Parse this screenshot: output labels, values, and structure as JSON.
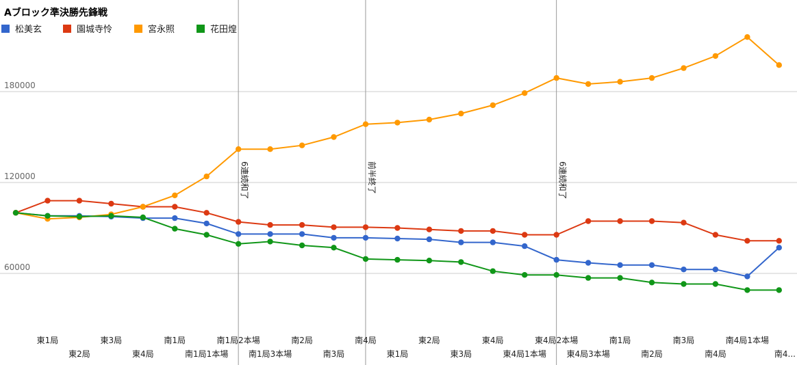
{
  "chart_data": {
    "type": "line",
    "title": "Aブロック準決勝先鋒戦",
    "xlabel": "",
    "ylabel": "",
    "legend_position": "top-left",
    "grid": true,
    "ylim": [
      30000,
      210000
    ],
    "yticks": [
      60000,
      120000,
      180000
    ],
    "categories": [
      "",
      "東1局",
      "東2局",
      "東3局",
      "東4局",
      "南1局",
      "南1局1本場",
      "南1局2本場",
      "南1局3本場",
      "南2局",
      "南3局",
      "南4局",
      "東1局",
      "東2局",
      "東3局",
      "東4局",
      "東4局1本場",
      "東4局2本場",
      "東4局3本場",
      "南1局",
      "南2局",
      "南3局",
      "南4局",
      "南4局1本場",
      "南4..."
    ],
    "series": [
      {
        "name": "松美玄",
        "color": "#3366cc",
        "values": [
          100000,
          98000,
          98000,
          97500,
          96500,
          96500,
          93000,
          86000,
          86000,
          86000,
          83500,
          83500,
          83000,
          82500,
          80500,
          80500,
          78000,
          69000,
          67000,
          65500,
          65500,
          62600,
          62600,
          58000,
          77000
        ]
      },
      {
        "name": "園城寺怜",
        "color": "#dc3912",
        "values": [
          100000,
          108000,
          108000,
          106000,
          104000,
          104000,
          100000,
          94000,
          92000,
          92000,
          90500,
          90500,
          90000,
          89000,
          88000,
          88000,
          85500,
          85500,
          94500,
          94500,
          94500,
          93500,
          85500,
          81500,
          81500
        ]
      },
      {
        "name": "宮永照",
        "color": "#ff9900",
        "values": [
          100000,
          96000,
          97000,
          99000,
          104000,
          111500,
          124000,
          142000,
          142000,
          144500,
          150000,
          158500,
          159500,
          161500,
          165500,
          171000,
          179000,
          189000,
          185000,
          186500,
          189000,
          195500,
          203500,
          216000,
          197500
        ]
      },
      {
        "name": "花田煌",
        "color": "#109618",
        "values": [
          100000,
          98000,
          97500,
          98000,
          97000,
          89500,
          85500,
          79500,
          81000,
          78500,
          77000,
          69500,
          69000,
          68500,
          67500,
          61500,
          59000,
          59000,
          57000,
          57000,
          54000,
          53000,
          53000,
          49000,
          49000
        ]
      }
    ],
    "annotations": [
      {
        "x_index": 7,
        "text": "6連続和了"
      },
      {
        "x_index": 11,
        "text": "前半終了"
      },
      {
        "x_index": 17,
        "text": "6連続和了"
      }
    ]
  }
}
